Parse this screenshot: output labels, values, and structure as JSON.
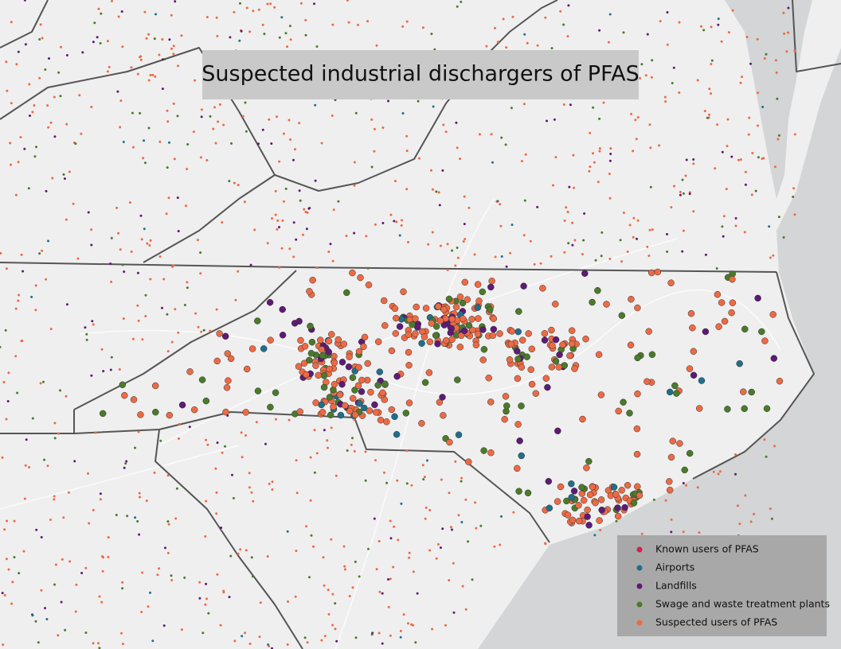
{
  "title": "Suspected industrial dischargers of PFAS",
  "legend": {
    "items": [
      {
        "label": "Known users of PFAS",
        "color": "#d0204f"
      },
      {
        "label": "Airports",
        "color": "#1f6f8b"
      },
      {
        "label": "Landfills",
        "color": "#5e1a75"
      },
      {
        "label": "Swage and waste treatment plants",
        "color": "#4a7a2a"
      },
      {
        "label": "Suspected users of PFAS",
        "color": "#ec6a44"
      }
    ]
  }
}
